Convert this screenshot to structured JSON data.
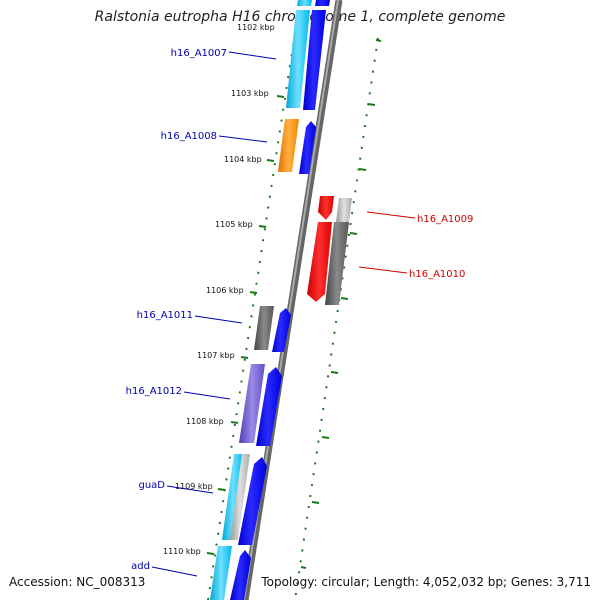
{
  "title": "Ralstonia eutropha H16 chromosome 1, complete genome",
  "accession": "Accession: NC_008313",
  "summary": "Topology: circular; Length: 4,052,032 bp; Genes: 3,711",
  "colors": {
    "left_label": "#0000aa",
    "right_label": "#cc0000",
    "tick": "#006600",
    "backbone": "#888888"
  },
  "scale_labels": [
    "1102 kbp",
    "1103 kbp",
    "1104 kbp",
    "1105 kbp",
    "1106 kbp",
    "1107 kbp",
    "1108 kbp",
    "1109 kbp",
    "1110 kbp"
  ],
  "gene_labels": [
    {
      "text": "h16_A1007",
      "side": "left"
    },
    {
      "text": "h16_A1008",
      "side": "left"
    },
    {
      "text": "h16_A1009",
      "side": "right"
    },
    {
      "text": "h16_A1010",
      "side": "right"
    },
    {
      "text": "h16_A1011",
      "side": "left"
    },
    {
      "text": "h16_A1012",
      "side": "left"
    },
    {
      "text": "guaD",
      "side": "left"
    },
    {
      "text": "add",
      "side": "left"
    }
  ]
}
